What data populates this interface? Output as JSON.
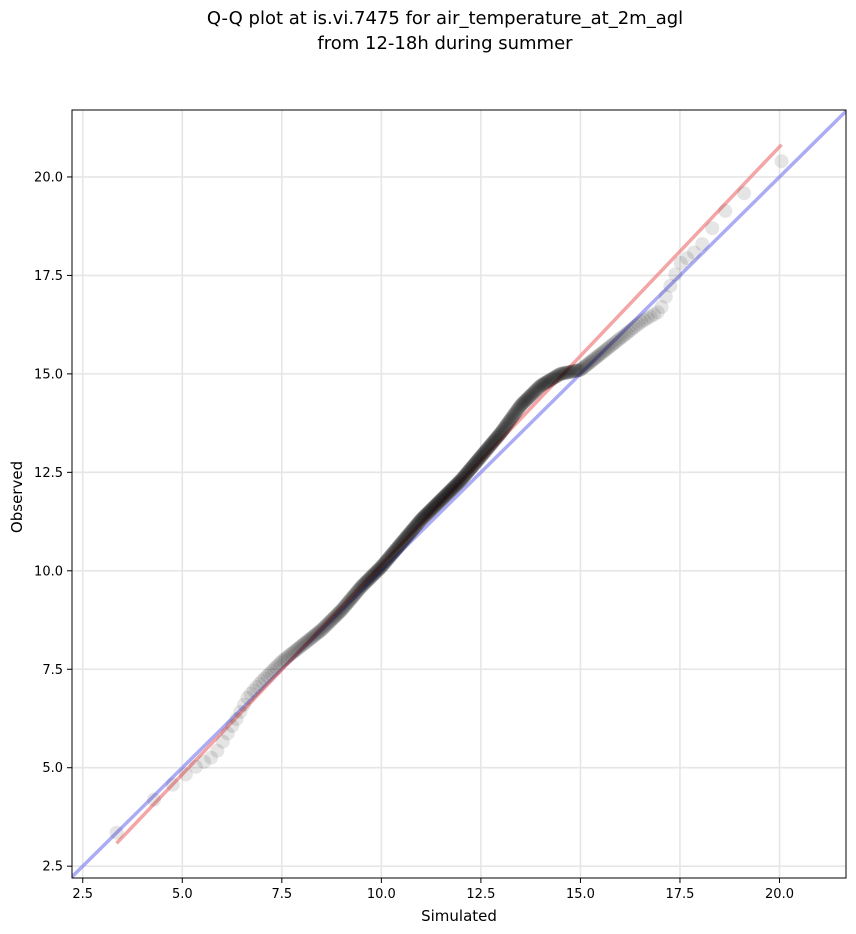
{
  "chart_data": {
    "type": "scatter",
    "title_lines": [
      "Q-Q plot at is.vi.7475 for air_temperature_at_2m_agl",
      "from 12-18h during summer"
    ],
    "xlabel": "Simulated",
    "ylabel": "Observed",
    "xlim": [
      2.23,
      21.67
    ],
    "ylim": [
      2.2,
      21.7
    ],
    "xticks": [
      2.5,
      5.0,
      7.5,
      10.0,
      12.5,
      15.0,
      17.5,
      20.0
    ],
    "yticks": [
      2.5,
      5.0,
      7.5,
      10.0,
      12.5,
      15.0,
      17.5,
      20.0
    ],
    "xtick_labels": [
      "2.5",
      "5.0",
      "7.5",
      "10.0",
      "12.5",
      "15.0",
      "17.5",
      "20.0"
    ],
    "ytick_labels": [
      "2.5",
      "5.0",
      "7.5",
      "10.0",
      "12.5",
      "15.0",
      "17.5",
      "20.0"
    ],
    "grid": true,
    "colors": {
      "points": "#000000",
      "fit_line": "#f08080",
      "identity_line": "#8080f0"
    },
    "fit_line": {
      "x": [
        3.35,
        20.05
      ],
      "y": [
        3.08,
        20.82
      ]
    },
    "identity_line": {
      "x": [
        2.23,
        21.67
      ],
      "y": [
        2.23,
        21.67
      ]
    },
    "quantile_anchors": {
      "x": [
        3.35,
        3.9,
        4.3,
        4.8,
        5.3,
        5.8,
        6.1,
        6.4,
        6.65,
        7.0,
        7.5,
        8.0,
        8.5,
        9.0,
        9.5,
        10.0,
        10.5,
        11.0,
        11.5,
        12.0,
        12.5,
        13.0,
        13.5,
        14.0,
        14.5,
        15.0,
        15.5,
        16.0,
        16.5,
        17.0,
        17.2,
        17.5,
        18.0,
        18.5,
        19.0,
        19.5,
        20.05
      ],
      "y": [
        3.35,
        3.8,
        4.2,
        4.6,
        5.0,
        5.3,
        5.8,
        6.3,
        6.8,
        7.2,
        7.7,
        8.1,
        8.5,
        9.0,
        9.6,
        10.1,
        10.7,
        11.3,
        11.8,
        12.3,
        12.9,
        13.5,
        14.2,
        14.7,
        15.0,
        15.1,
        15.5,
        15.9,
        16.3,
        16.6,
        17.1,
        17.8,
        18.2,
        19.0,
        19.5,
        19.9,
        20.4
      ]
    },
    "n_points": 460
  }
}
